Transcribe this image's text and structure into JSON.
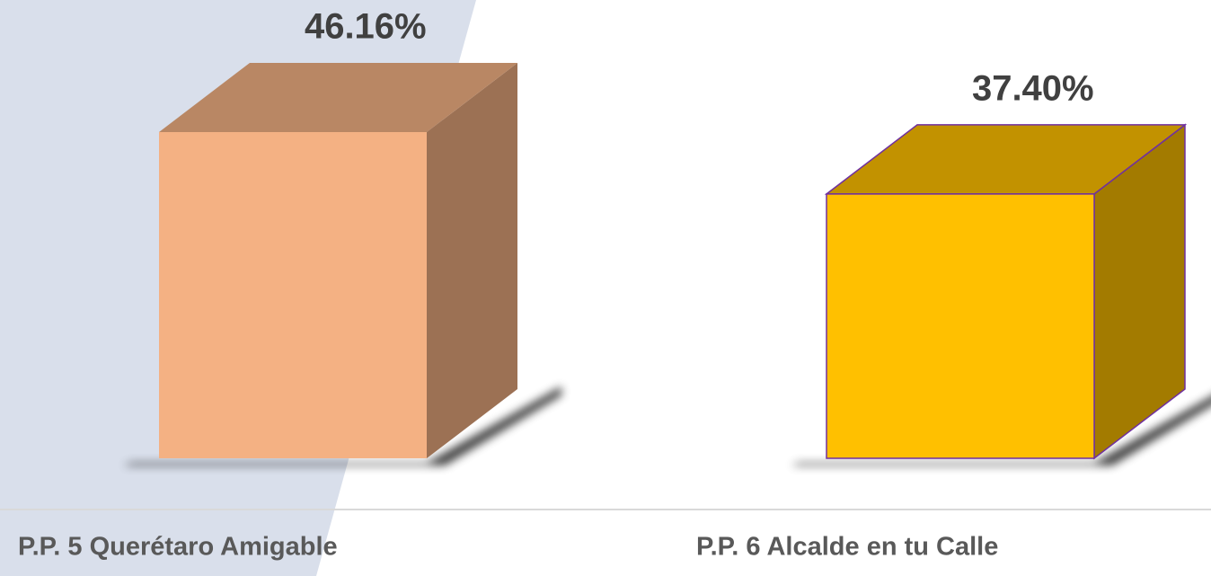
{
  "chart_data": {
    "type": "bar3d",
    "categories": [
      "P.P. 5 Querétaro Amigable",
      "P.P. 6 Alcalde en tu Calle"
    ],
    "values": [
      46.16,
      37.4
    ],
    "value_labels": [
      "46.16%",
      "37.40%"
    ],
    "colors": [
      "#f4b183",
      "#ffc000"
    ]
  }
}
